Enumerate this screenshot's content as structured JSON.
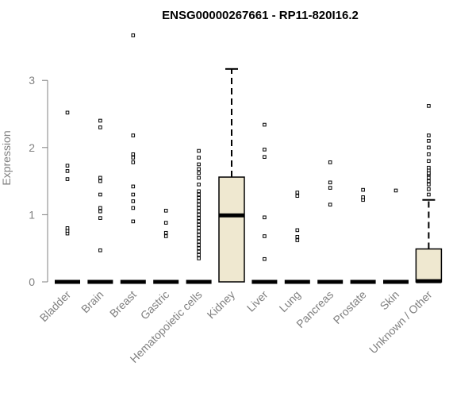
{
  "chart_data": {
    "type": "boxplot",
    "title": "ENSG00000267661 - RP11-820I16.2",
    "ylabel": "Expression",
    "xlabel": "",
    "ylim": [
      0,
      3.7
    ],
    "yticks": [
      0,
      1,
      2,
      3
    ],
    "box_fill": "#EFE8D0",
    "categories": [
      "Bladder",
      "Brain",
      "Breast",
      "Gastric",
      "Hematopoietic cells",
      "Kidney",
      "Liver",
      "Lung",
      "Pancreas",
      "Prostate",
      "Skin",
      "Unknown / Other"
    ],
    "boxes": [
      {
        "q1": 0,
        "median": 0,
        "q3": 0,
        "whisker_low": 0,
        "whisker_high": 0,
        "outliers": [
          0.72,
          0.76,
          0.8,
          1.53,
          1.65,
          1.73,
          2.52
        ]
      },
      {
        "q1": 0,
        "median": 0,
        "q3": 0,
        "whisker_low": 0,
        "whisker_high": 0,
        "outliers": [
          0.47,
          0.95,
          1.05,
          1.1,
          1.3,
          1.5,
          1.55,
          2.3,
          2.4
        ]
      },
      {
        "q1": 0,
        "median": 0,
        "q3": 0,
        "whisker_low": 0,
        "whisker_high": 0,
        "outliers": [
          0.9,
          1.1,
          1.2,
          1.3,
          1.42,
          1.78,
          1.85,
          1.9,
          2.18,
          3.67
        ]
      },
      {
        "q1": 0,
        "median": 0,
        "q3": 0,
        "whisker_low": 0,
        "whisker_high": 0,
        "outliers": [
          0.68,
          0.73,
          0.88,
          1.06
        ]
      },
      {
        "q1": 0,
        "median": 0,
        "q3": 0,
        "whisker_low": 0,
        "whisker_high": 0,
        "outliers": [
          0.35,
          0.4,
          0.45,
          0.5,
          0.55,
          0.6,
          0.65,
          0.7,
          0.75,
          0.8,
          0.85,
          0.9,
          0.95,
          1.0,
          1.05,
          1.1,
          1.15,
          1.2,
          1.25,
          1.3,
          1.35,
          1.45,
          1.55,
          1.62,
          1.68,
          1.75,
          1.85,
          1.95
        ]
      },
      {
        "q1": 0,
        "median": 0.99,
        "q3": 1.56,
        "whisker_low": 0,
        "whisker_high": 3.17,
        "outliers": []
      },
      {
        "q1": 0,
        "median": 0,
        "q3": 0,
        "whisker_low": 0,
        "whisker_high": 0,
        "outliers": [
          0.34,
          0.68,
          0.96,
          1.86,
          1.97,
          2.34
        ]
      },
      {
        "q1": 0,
        "median": 0,
        "q3": 0,
        "whisker_low": 0,
        "whisker_high": 0,
        "outliers": [
          0.62,
          0.67,
          0.77,
          1.28,
          1.33
        ]
      },
      {
        "q1": 0,
        "median": 0,
        "q3": 0,
        "whisker_low": 0,
        "whisker_high": 0,
        "outliers": [
          1.15,
          1.4,
          1.48,
          1.78
        ]
      },
      {
        "q1": 0,
        "median": 0,
        "q3": 0,
        "whisker_low": 0,
        "whisker_high": 0,
        "outliers": [
          1.22,
          1.26,
          1.37
        ]
      },
      {
        "q1": 0,
        "median": 0,
        "q3": 0,
        "whisker_low": 0,
        "whisker_high": 0,
        "outliers": [
          1.36
        ]
      },
      {
        "q1": 0,
        "median": 0.01,
        "q3": 0.49,
        "whisker_low": 0,
        "whisker_high": 1.22,
        "outliers": [
          1.3,
          1.38,
          1.45,
          1.5,
          1.55,
          1.6,
          1.62,
          1.66,
          1.7,
          1.8,
          1.9,
          2.0,
          2.1,
          2.18,
          2.62
        ]
      }
    ]
  }
}
